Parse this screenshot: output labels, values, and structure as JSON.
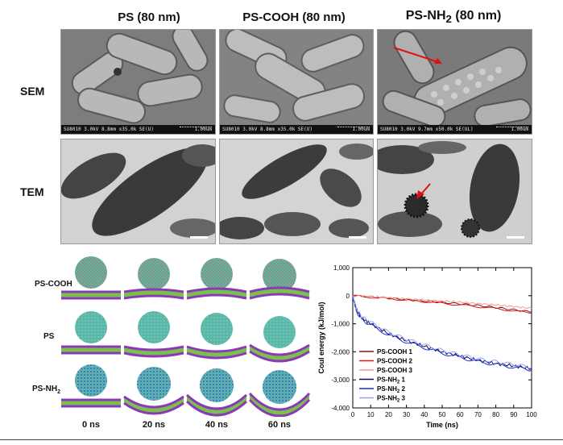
{
  "column_titles": [
    {
      "main": "PS (80 nm)"
    },
    {
      "main": "PS-COOH (80 nm)"
    },
    {
      "pre": "PS-NH",
      "sub": "2",
      "post": " (80 nm)"
    }
  ],
  "row_labels": {
    "sem": "SEM",
    "tem": "TEM"
  },
  "sem_footers": [
    {
      "left": "SU8010 3.0kV 8.8mm x35.0k SE(U)",
      "right": "1.00um"
    },
    {
      "left": "SU8010 3.0kV 8.8mm x35.0k SE(U)",
      "right": "1.00um"
    },
    {
      "left": "SU8010 3.0kV 9.7mm x50.0k SE(UL)",
      "right": "1.00um"
    }
  ],
  "simulation": {
    "rows": [
      {
        "pre": "PS-COOH",
        "sub": "",
        "post": ""
      },
      {
        "pre": "PS",
        "sub": "",
        "post": ""
      },
      {
        "pre": "PS-NH",
        "sub": "2",
        "post": ""
      }
    ],
    "times": [
      "0 ns",
      "20 ns",
      "40 ns",
      "60 ns"
    ]
  },
  "chart_data": {
    "type": "line",
    "xlabel": "Time (ns)",
    "ylabel": "Coul energy (kJ/mol)",
    "xlim": [
      0,
      100
    ],
    "ylim": [
      -4000,
      1000
    ],
    "xticks": [
      "0",
      "10",
      "20",
      "30",
      "40",
      "50",
      "60",
      "70",
      "80",
      "90",
      "100"
    ],
    "yticks": [
      "1,000",
      "0",
      "-1,000",
      "-2,000",
      "-3,000",
      "-4,000"
    ],
    "legend_position": "bottom-left",
    "series": [
      {
        "name": "PS-COOH 1",
        "label": {
          "pre": "PS-COOH 1"
        },
        "color": "#8b1010",
        "x": [
          0,
          10,
          20,
          30,
          40,
          50,
          60,
          70,
          80,
          90,
          100
        ],
        "y": [
          0,
          -40,
          -90,
          -140,
          -190,
          -240,
          -290,
          -350,
          -420,
          -500,
          -580
        ]
      },
      {
        "name": "PS-COOH 2",
        "label": {
          "pre": "PS-COOH 2"
        },
        "color": "#e01818",
        "x": [
          0,
          10,
          20,
          30,
          40,
          50,
          60,
          70,
          80,
          90,
          100
        ],
        "y": [
          0,
          -50,
          -100,
          -160,
          -210,
          -270,
          -330,
          -390,
          -460,
          -540,
          -620
        ]
      },
      {
        "name": "PS-COOH 3",
        "label": {
          "pre": "PS-COOH 3"
        },
        "color": "#f29a9a",
        "x": [
          0,
          10,
          20,
          30,
          40,
          50,
          60,
          70,
          80,
          90,
          100
        ],
        "y": [
          0,
          -30,
          -70,
          -110,
          -150,
          -190,
          -230,
          -280,
          -330,
          -390,
          -450
        ]
      },
      {
        "name": "PS-NH2 1",
        "label": {
          "pre": "PS-NH",
          "sub": "2",
          "post": " 1"
        },
        "color": "#0a0a60",
        "x": [
          0,
          2,
          5,
          10,
          20,
          30,
          40,
          50,
          60,
          70,
          80,
          90,
          100
        ],
        "y": [
          0,
          -500,
          -800,
          -1000,
          -1350,
          -1600,
          -1800,
          -2000,
          -2150,
          -2300,
          -2420,
          -2500,
          -2600
        ]
      },
      {
        "name": "PS-NH2 2",
        "label": {
          "pre": "PS-NH",
          "sub": "2",
          "post": " 2"
        },
        "color": "#1a2fd0",
        "x": [
          0,
          2,
          5,
          10,
          20,
          30,
          40,
          50,
          60,
          70,
          80,
          90,
          100
        ],
        "y": [
          0,
          -550,
          -850,
          -1050,
          -1400,
          -1650,
          -1850,
          -2050,
          -2200,
          -2350,
          -2450,
          -2550,
          -2650
        ]
      },
      {
        "name": "PS-NH2 3",
        "label": {
          "pre": "PS-NH",
          "sub": "2",
          "post": " 3"
        },
        "color": "#9aa4ea",
        "x": [
          0,
          2,
          5,
          10,
          20,
          30,
          40,
          50,
          60,
          70,
          80,
          90,
          100
        ],
        "y": [
          0,
          -450,
          -750,
          -950,
          -1300,
          -1550,
          -1750,
          -1950,
          -2100,
          -2250,
          -2350,
          -2450,
          -2550
        ]
      }
    ]
  }
}
